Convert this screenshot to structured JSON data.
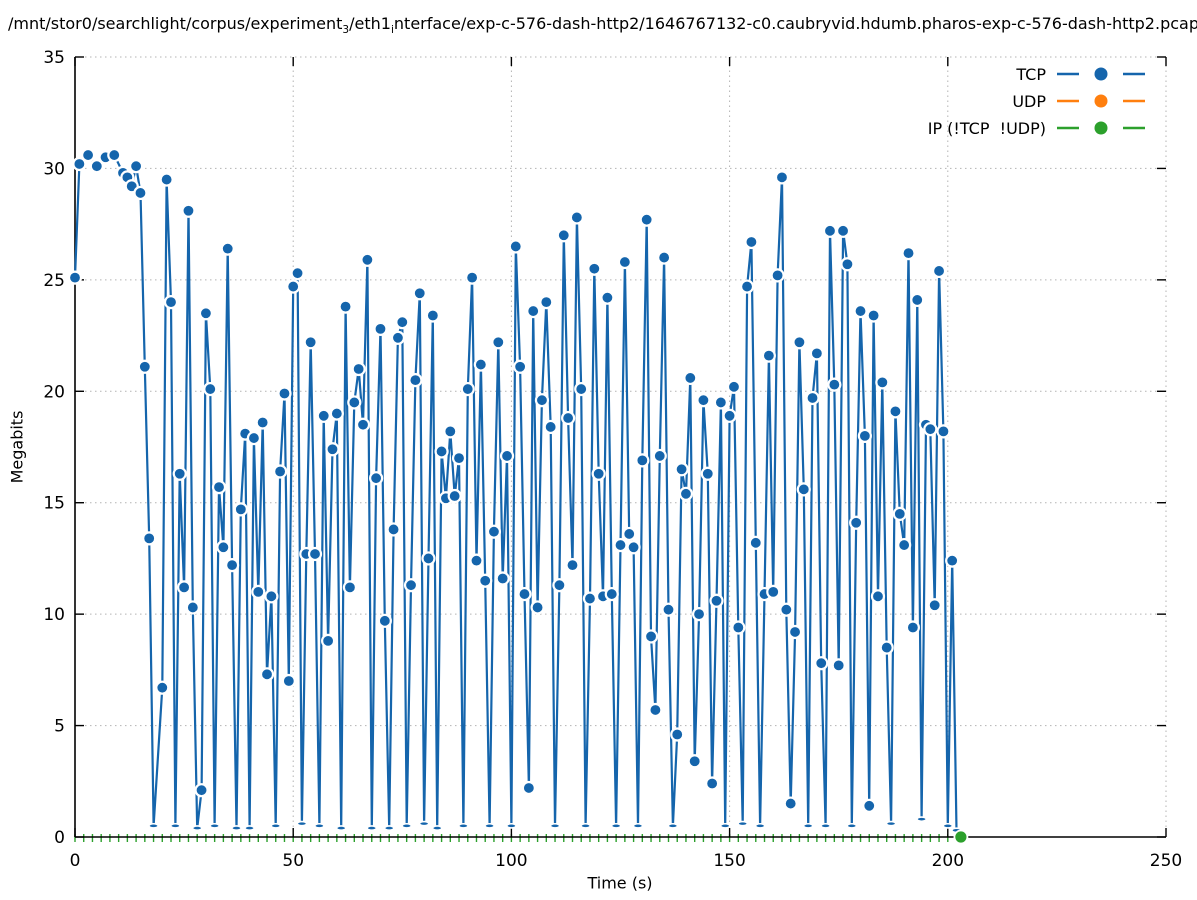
{
  "title_display": {
    "part1": "/mnt/stor0/searchlight/corpus/experiment",
    "sub1": "3",
    "part2": "/eth1",
    "sub2": "i",
    "part3": "nterface/exp-c-576-dash-http2/1646767132-c0.caubryvid.hdumb.pharos-exp-c-576-dash-http2.pcap"
  },
  "chart_data": {
    "type": "line",
    "title": "/mnt/stor0/searchlight/corpus/experiment₃/eth1ᵢnterface/exp-c-576-dash-http2/1646767132-c0.caubryvid.hdumb.pharos-exp-c-576-dash-http2.pcap",
    "xlabel": "Time (s)",
    "ylabel": "Megabits",
    "xlim": [
      0,
      250
    ],
    "ylim": [
      0,
      35
    ],
    "xticks": [
      0,
      50,
      100,
      150,
      200,
      250
    ],
    "yticks": [
      0,
      5,
      10,
      15,
      20,
      25,
      30,
      35
    ],
    "grid": true,
    "grid_color": "#b3b3b3",
    "legend_position": "top-right-inside",
    "series": [
      {
        "name": "TCP",
        "color": "#1565ac",
        "marker": "filled-circle",
        "points": [
          [
            0,
            25.1
          ],
          [
            1,
            30.2
          ],
          [
            3,
            30.6
          ],
          [
            5,
            30.1
          ],
          [
            7,
            30.5
          ],
          [
            9,
            30.6
          ],
          [
            11,
            29.8
          ],
          [
            12,
            29.6
          ],
          [
            13,
            29.2
          ],
          [
            14,
            30.1
          ],
          [
            15,
            28.9
          ],
          [
            16,
            21.1
          ],
          [
            17,
            13.4
          ],
          [
            18,
            0.5
          ],
          [
            20,
            6.7
          ],
          [
            21,
            29.5
          ],
          [
            22,
            24.0
          ],
          [
            23,
            0.5
          ],
          [
            24,
            16.3
          ],
          [
            25,
            11.2
          ],
          [
            26,
            28.1
          ],
          [
            27,
            10.3
          ],
          [
            28,
            0.4
          ],
          [
            29,
            2.1
          ],
          [
            30,
            23.5
          ],
          [
            31,
            20.1
          ],
          [
            32,
            0.5
          ],
          [
            33,
            15.7
          ],
          [
            34,
            13.0
          ],
          [
            35,
            26.4
          ],
          [
            36,
            12.2
          ],
          [
            37,
            0.4
          ],
          [
            38,
            14.7
          ],
          [
            39,
            18.1
          ],
          [
            40,
            0.4
          ],
          [
            41,
            17.9
          ],
          [
            42,
            11.0
          ],
          [
            43,
            18.6
          ],
          [
            44,
            7.3
          ],
          [
            45,
            10.8
          ],
          [
            46,
            0.5
          ],
          [
            47,
            16.4
          ],
          [
            48,
            19.9
          ],
          [
            49,
            7.0
          ],
          [
            50,
            24.7
          ],
          [
            51,
            25.3
          ],
          [
            52,
            0.6
          ],
          [
            53,
            12.7
          ],
          [
            54,
            22.2
          ],
          [
            55,
            12.7
          ],
          [
            56,
            0.5
          ],
          [
            57,
            18.9
          ],
          [
            58,
            8.8
          ],
          [
            59,
            17.4
          ],
          [
            60,
            19.0
          ],
          [
            61,
            0.4
          ],
          [
            62,
            23.8
          ],
          [
            63,
            11.2
          ],
          [
            64,
            19.5
          ],
          [
            65,
            21.0
          ],
          [
            66,
            18.5
          ],
          [
            67,
            25.9
          ],
          [
            68,
            0.4
          ],
          [
            69,
            16.1
          ],
          [
            70,
            22.8
          ],
          [
            71,
            9.7
          ],
          [
            72,
            0.4
          ],
          [
            73,
            13.8
          ],
          [
            74,
            22.4
          ],
          [
            75,
            23.1
          ],
          [
            76,
            0.5
          ],
          [
            77,
            11.3
          ],
          [
            78,
            20.5
          ],
          [
            79,
            24.4
          ],
          [
            80,
            0.6
          ],
          [
            81,
            12.5
          ],
          [
            82,
            23.4
          ],
          [
            83,
            0.4
          ],
          [
            84,
            17.3
          ],
          [
            85,
            15.2
          ],
          [
            86,
            18.2
          ],
          [
            87,
            15.3
          ],
          [
            88,
            17.0
          ],
          [
            89,
            0.5
          ],
          [
            90,
            20.1
          ],
          [
            91,
            25.1
          ],
          [
            92,
            12.4
          ],
          [
            93,
            21.2
          ],
          [
            94,
            11.5
          ],
          [
            95,
            0.5
          ],
          [
            96,
            13.7
          ],
          [
            97,
            22.2
          ],
          [
            98,
            11.6
          ],
          [
            99,
            17.1
          ],
          [
            100,
            0.5
          ],
          [
            101,
            26.5
          ],
          [
            102,
            21.1
          ],
          [
            103,
            10.9
          ],
          [
            104,
            2.2
          ],
          [
            105,
            23.6
          ],
          [
            106,
            10.3
          ],
          [
            107,
            19.6
          ],
          [
            108,
            24.0
          ],
          [
            109,
            18.4
          ],
          [
            110,
            0.5
          ],
          [
            111,
            11.3
          ],
          [
            112,
            27.0
          ],
          [
            113,
            18.8
          ],
          [
            114,
            12.2
          ],
          [
            115,
            27.8
          ],
          [
            116,
            20.1
          ],
          [
            117,
            0.5
          ],
          [
            118,
            10.7
          ],
          [
            119,
            25.5
          ],
          [
            120,
            16.3
          ],
          [
            121,
            10.8
          ],
          [
            122,
            24.2
          ],
          [
            123,
            10.9
          ],
          [
            124,
            0.5
          ],
          [
            125,
            13.1
          ],
          [
            126,
            25.8
          ],
          [
            127,
            13.6
          ],
          [
            128,
            13.0
          ],
          [
            129,
            0.5
          ],
          [
            130,
            16.9
          ],
          [
            131,
            27.7
          ],
          [
            132,
            9.0
          ],
          [
            133,
            5.7
          ],
          [
            134,
            17.1
          ],
          [
            135,
            26.0
          ],
          [
            136,
            10.2
          ],
          [
            137,
            0.5
          ],
          [
            138,
            4.6
          ],
          [
            139,
            16.5
          ],
          [
            140,
            15.4
          ],
          [
            141,
            20.6
          ],
          [
            142,
            3.4
          ],
          [
            143,
            10.0
          ],
          [
            144,
            19.6
          ],
          [
            145,
            16.3
          ],
          [
            146,
            2.4
          ],
          [
            147,
            10.6
          ],
          [
            148,
            19.5
          ],
          [
            149,
            0.5
          ],
          [
            150,
            18.9
          ],
          [
            151,
            20.2
          ],
          [
            152,
            9.4
          ],
          [
            153,
            0.6
          ],
          [
            154,
            24.7
          ],
          [
            155,
            26.7
          ],
          [
            156,
            13.2
          ],
          [
            157,
            0.5
          ],
          [
            158,
            10.9
          ],
          [
            159,
            21.6
          ],
          [
            160,
            11.0
          ],
          [
            161,
            25.2
          ],
          [
            162,
            29.6
          ],
          [
            163,
            10.2
          ],
          [
            164,
            1.5
          ],
          [
            165,
            9.2
          ],
          [
            166,
            22.2
          ],
          [
            167,
            15.6
          ],
          [
            168,
            0.5
          ],
          [
            169,
            19.7
          ],
          [
            170,
            21.7
          ],
          [
            171,
            7.8
          ],
          [
            172,
            0.5
          ],
          [
            173,
            27.2
          ],
          [
            174,
            20.3
          ],
          [
            175,
            7.7
          ],
          [
            176,
            27.2
          ],
          [
            177,
            25.7
          ],
          [
            178,
            0.5
          ],
          [
            179,
            14.1
          ],
          [
            180,
            23.6
          ],
          [
            181,
            18.0
          ],
          [
            182,
            1.4
          ],
          [
            183,
            23.4
          ],
          [
            184,
            10.8
          ],
          [
            185,
            20.4
          ],
          [
            186,
            8.5
          ],
          [
            187,
            0.6
          ],
          [
            188,
            19.1
          ],
          [
            189,
            14.5
          ],
          [
            190,
            13.1
          ],
          [
            191,
            26.2
          ],
          [
            192,
            9.4
          ],
          [
            193,
            24.1
          ],
          [
            194,
            0.8
          ],
          [
            195,
            18.5
          ],
          [
            196,
            18.3
          ],
          [
            197,
            10.4
          ],
          [
            198,
            25.4
          ],
          [
            199,
            18.2
          ],
          [
            200,
            0.5
          ],
          [
            201,
            12.4
          ],
          [
            202,
            0.3
          ]
        ]
      },
      {
        "name": "UDP",
        "color": "#ff7f0e",
        "marker": "filled-circle",
        "points": []
      },
      {
        "name": "IP (!TCP  !UDP)",
        "color": "#2ca02c",
        "marker": "filled-circle",
        "y_constant": 0,
        "x_start": 0,
        "x_end": 202,
        "x_interval": 2,
        "end_point": [
          203,
          0
        ]
      }
    ]
  },
  "axis_color": "#000000",
  "background_color": "#ffffff"
}
